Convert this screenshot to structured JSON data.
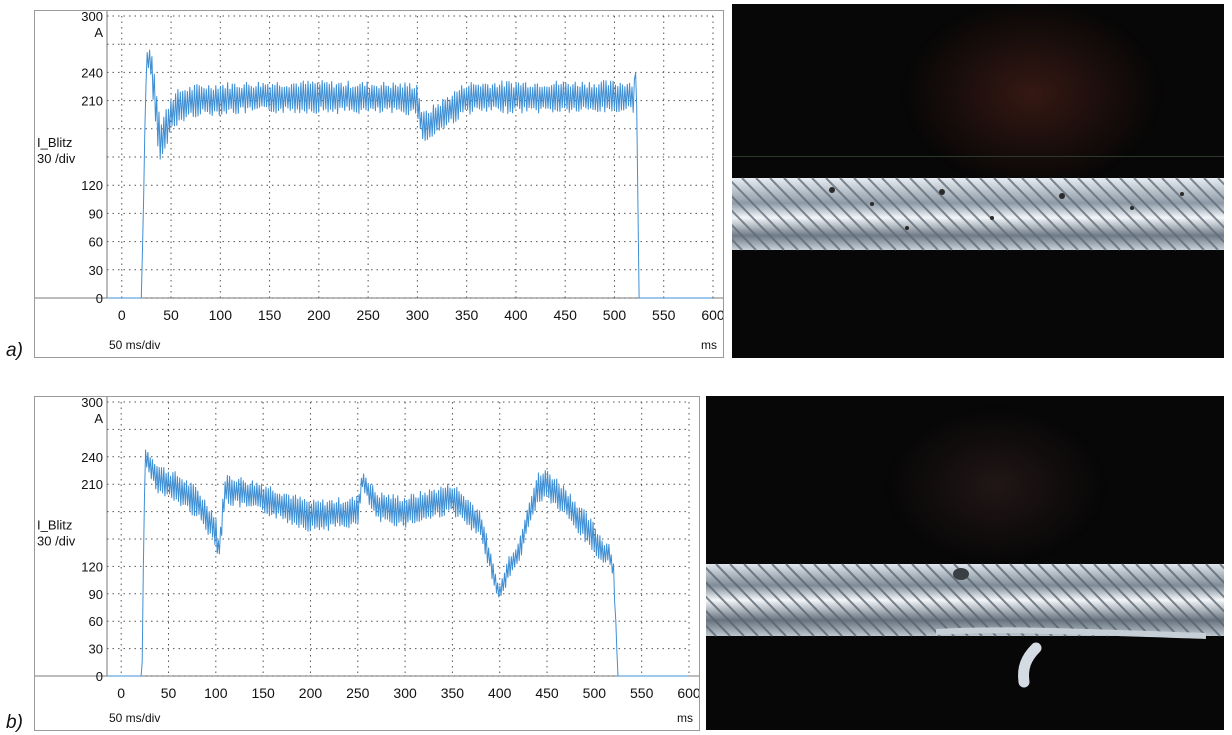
{
  "panels": [
    {
      "label": "a)",
      "y_unit": "A",
      "y_channel": "I_Blitz",
      "y_scale": "30 /div",
      "x_scale": "50 ms/div",
      "x_unit": "ms"
    },
    {
      "label": "b)",
      "y_unit": "A",
      "y_channel": "I_Blitz",
      "y_scale": "30 /div",
      "x_scale": "50 ms/div",
      "x_unit": "ms"
    }
  ],
  "chart_data": [
    {
      "type": "line",
      "title": "",
      "xlabel": "ms",
      "ylabel": "I_Blitz",
      "xlim": [
        -15,
        600
      ],
      "ylim": [
        0,
        300
      ],
      "x_ticks": [
        "0",
        "50",
        "100",
        "150",
        "200",
        "250",
        "300",
        "350",
        "400",
        "450",
        "500",
        "550",
        "600"
      ],
      "y_ticks": [
        "0",
        "30",
        "60",
        "90",
        "120",
        "210",
        "240",
        "300"
      ],
      "grid": true,
      "line_color": "#3f8fd4",
      "series": [
        {
          "x": [
            -15,
            20,
            25,
            30,
            35,
            40,
            50,
            60,
            75,
            100,
            150,
            200,
            250,
            300,
            305,
            350,
            400,
            450,
            500,
            520,
            522,
            525,
            530,
            600
          ],
          "y": [
            0,
            0,
            255,
            250,
            200,
            165,
            195,
            205,
            210,
            212,
            214,
            214,
            213,
            212,
            180,
            213,
            214,
            214,
            214,
            215,
            255,
            0,
            0,
            0
          ],
          "amplitude": [
            0,
            0,
            8,
            20,
            30,
            25,
            22,
            20,
            18,
            18,
            18,
            18,
            18,
            18,
            18,
            18,
            18,
            18,
            18,
            18,
            0,
            0,
            0,
            0
          ]
        }
      ]
    },
    {
      "type": "line",
      "title": "",
      "xlabel": "ms",
      "ylabel": "I_Blitz",
      "xlim": [
        -15,
        600
      ],
      "ylim": [
        0,
        300
      ],
      "x_ticks": [
        "0",
        "50",
        "100",
        "150",
        "200",
        "250",
        "300",
        "350",
        "400",
        "450",
        "500",
        "550",
        "600"
      ],
      "y_ticks": [
        "0",
        "30",
        "60",
        "90",
        "120",
        "210",
        "240",
        "300"
      ],
      "grid": true,
      "line_color": "#3f8fd4",
      "series": [
        {
          "x": [
            -15,
            20,
            22,
            25,
            40,
            60,
            80,
            100,
            103,
            110,
            150,
            200,
            250,
            255,
            270,
            300,
            350,
            380,
            395,
            400,
            410,
            420,
            430,
            440,
            450,
            470,
            500,
            510,
            515,
            520,
            525,
            600
          ],
          "y": [
            0,
            0,
            0,
            240,
            215,
            205,
            190,
            160,
            135,
            205,
            195,
            175,
            180,
            215,
            185,
            180,
            195,
            165,
            105,
            90,
            120,
            135,
            175,
            205,
            210,
            190,
            150,
            135,
            135,
            120,
            0,
            0
          ],
          "amplitude": [
            0,
            0,
            0,
            12,
            18,
            18,
            18,
            18,
            12,
            18,
            18,
            18,
            18,
            12,
            18,
            18,
            18,
            18,
            10,
            10,
            14,
            14,
            18,
            18,
            18,
            18,
            18,
            14,
            14,
            10,
            0,
            0
          ]
        }
      ]
    }
  ]
}
